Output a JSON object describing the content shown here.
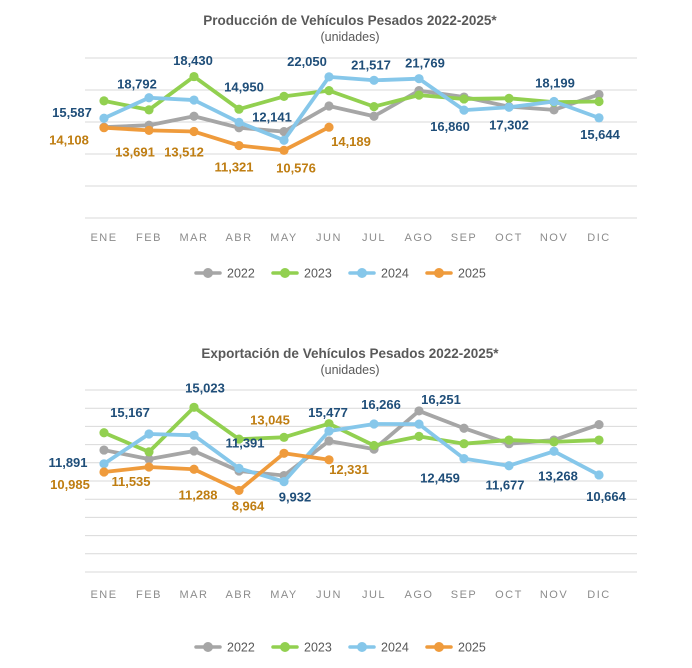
{
  "colors": {
    "title_text": "#595959",
    "axis_text": "#8C8C8C",
    "legend_text": "#595959",
    "gridline": "#D9D9D9",
    "background": "#FFFFFF",
    "label_2024": "#1F4E79",
    "label_2025": "#BF7D11"
  },
  "chart_data": [
    {
      "type": "line",
      "title": "Producción de Vehículos Pesados 2022-2025*",
      "subtitle": "(unidades)",
      "categories": [
        "ENE",
        "FEB",
        "MAR",
        "ABR",
        "MAY",
        "JUN",
        "JUL",
        "AGO",
        "SEP",
        "OCT",
        "NOV",
        "DIC"
      ],
      "ylim": [
        0,
        25000
      ],
      "grid_step": 5000,
      "grid": true,
      "legend_position": "bottom",
      "series": [
        {
          "name": "2022",
          "color": "#A6A6A6",
          "data_labels": false,
          "values": [
            14200,
            14500,
            15900,
            14100,
            13500,
            17500,
            15900,
            19900,
            18900,
            17400,
            16900,
            19300
          ]
        },
        {
          "name": "2023",
          "color": "#92D050",
          "data_labels": false,
          "values": [
            18300,
            16900,
            22100,
            17000,
            19000,
            19900,
            17400,
            19200,
            18600,
            18700,
            18100,
            18200
          ]
        },
        {
          "name": "2024",
          "color": "#86C7EA",
          "data_labels": true,
          "label_color": "#1F4E79",
          "values": [
            15587,
            18792,
            18430,
            14950,
            12141,
            22050,
            21517,
            21769,
            16860,
            17302,
            18199,
            15644
          ]
        },
        {
          "name": "2025",
          "color": "#EF9B3C",
          "data_labels": true,
          "label_color": "#BF7D11",
          "values": [
            14108,
            13691,
            13512,
            11321,
            10576,
            14189
          ]
        }
      ]
    },
    {
      "type": "line",
      "title": "Exportación de Vehículos Pesados 2022-2025*",
      "subtitle": "(unidades)",
      "categories": [
        "ENE",
        "FEB",
        "MAR",
        "ABR",
        "MAY",
        "JUN",
        "JUL",
        "AGO",
        "SEP",
        "OCT",
        "NOV",
        "DIC"
      ],
      "ylim": [
        0,
        20000
      ],
      "grid_step": 2000,
      "grid": true,
      "legend_position": "bottom",
      "series": [
        {
          "name": "2022",
          "color": "#A6A6A6",
          "data_labels": false,
          "values": [
            13400,
            12400,
            13300,
            11100,
            10600,
            14400,
            13500,
            17700,
            15800,
            14100,
            14500,
            16200
          ]
        },
        {
          "name": "2023",
          "color": "#92D050",
          "data_labels": false,
          "values": [
            15300,
            13200,
            18100,
            14600,
            14800,
            16300,
            13900,
            14900,
            14100,
            14500,
            14300,
            14500
          ]
        },
        {
          "name": "2024",
          "color": "#86C7EA",
          "data_labels": true,
          "label_color": "#1F4E79",
          "values": [
            11891,
            15167,
            15023,
            11391,
            9932,
            15477,
            16266,
            16251,
            12459,
            11677,
            13268,
            10664
          ]
        },
        {
          "name": "2025",
          "color": "#EF9B3C",
          "data_labels": true,
          "label_color": "#BF7D11",
          "values": [
            10985,
            11535,
            11288,
            8964,
            13045,
            12331
          ]
        }
      ]
    }
  ]
}
